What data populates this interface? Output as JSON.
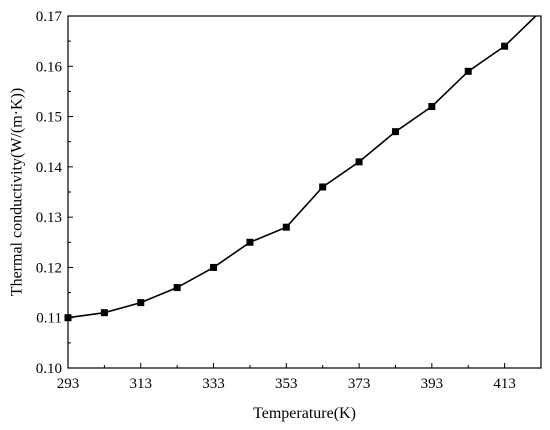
{
  "chart_data": {
    "type": "line",
    "title": "",
    "xlabel": "Temperature(K)",
    "ylabel": "Thermal conductivity(W/(m·K))",
    "xlim": [
      293,
      423
    ],
    "ylim": [
      0.1,
      0.17
    ],
    "xticks": [
      293,
      313,
      333,
      353,
      373,
      393,
      413
    ],
    "yticks": [
      0.1,
      0.11,
      0.12,
      0.13,
      0.14,
      0.15,
      0.16,
      0.17
    ],
    "xtick_labels": [
      "293",
      "313",
      "333",
      "353",
      "373",
      "393",
      "413"
    ],
    "ytick_labels": [
      "0.10",
      "0.11",
      "0.12",
      "0.13",
      "0.14",
      "0.15",
      "0.16",
      "0.17"
    ],
    "grid": false,
    "legend": "none",
    "line_color": "#000000",
    "marker": "square",
    "series": [
      {
        "x": [
          293,
          303,
          313,
          323,
          333,
          343,
          353,
          363,
          373,
          383,
          393,
          403,
          413,
          423
        ],
        "y": [
          0.11,
          0.111,
          0.113,
          0.116,
          0.12,
          0.125,
          0.128,
          0.136,
          0.141,
          0.147,
          0.152,
          0.159,
          0.164,
          0.171
        ],
        "markers": [
          true,
          true,
          true,
          true,
          true,
          true,
          true,
          true,
          true,
          true,
          true,
          true,
          true,
          false
        ]
      }
    ]
  }
}
